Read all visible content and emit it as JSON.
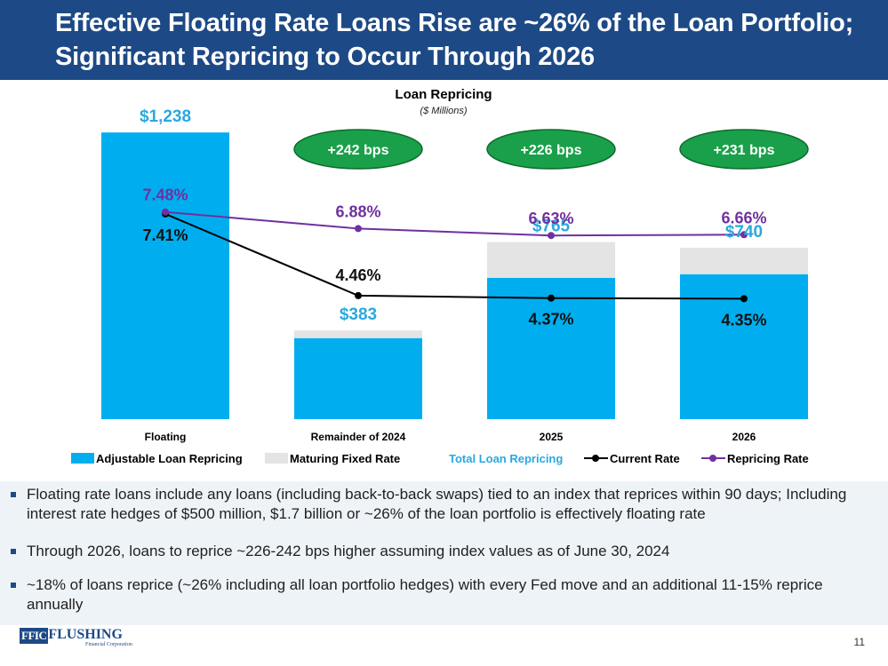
{
  "slide": {
    "title_line1": "Effective Floating Rate Loans Rise are ~26% of the Loan Portfolio;",
    "title_line2": "Significant Repricing to Occur Through 2026",
    "page_number": "11"
  },
  "logo": {
    "mark": "FFIC",
    "name": "FLUSHING",
    "sub": "Financial Corporation"
  },
  "bullets": [
    "Floating rate loans include any loans (including back-to-back swaps) tied to an index that reprices within 90 days; Including interest rate hedges of $500 million, $1.7 billion or ~26% of the loan portfolio is effectively floating rate",
    "Through 2026, loans to reprice ~226-242 bps higher assuming index values as of June 30, 2024",
    "~18% of loans reprice (~26% including all loan portfolio hedges) with every Fed move and an additional 11-15% reprice annually"
  ],
  "colors": {
    "header_bg": "#1d4a86",
    "adjustable": "#00aeef",
    "maturing": "#e4e4e4",
    "total_label": "#2aa8e0",
    "current_rate": "#000000",
    "repricing_rate": "#7030a0",
    "bps_fill": "#1aa04a",
    "bps_border": "#0b6b2c"
  },
  "chart_data": {
    "type": "bar",
    "title": "Loan Repricing",
    "subtitle": "($ Millions)",
    "categories": [
      "Floating",
      "Remainder of 2024",
      "2025",
      "2026"
    ],
    "y_units": "$ Millions",
    "ylim": [
      0,
      1300
    ],
    "series": [
      {
        "name": "Adjustable Loan Repricing",
        "kind": "stacked-bar",
        "values": [
          1238,
          350,
          610,
          626
        ]
      },
      {
        "name": "Maturing Fixed Rate",
        "kind": "stacked-bar",
        "values": [
          0,
          33,
          155,
          114
        ]
      },
      {
        "name": "Current Rate",
        "kind": "line",
        "values": [
          7.41,
          4.46,
          4.37,
          4.35
        ]
      },
      {
        "name": "Repricing Rate",
        "kind": "line",
        "values": [
          7.48,
          6.88,
          6.63,
          6.66
        ]
      }
    ],
    "rate_ylim": [
      0,
      10.87
    ],
    "total_labels": [
      "$1,238",
      "$383",
      "$765",
      "$740"
    ],
    "current_rate_labels": [
      "7.41%",
      "4.46%",
      "4.37%",
      "4.35%"
    ],
    "repricing_rate_labels": [
      "7.48%",
      "6.88%",
      "6.63%",
      "6.66%"
    ],
    "bps_labels": [
      "",
      "+242 bps",
      "+226 bps",
      "+231 bps"
    ],
    "legend": [
      "Adjustable Loan Repricing",
      "Maturing Fixed Rate",
      "Total Loan Repricing",
      "Current Rate",
      "Repricing Rate"
    ],
    "legend_position": "bottom",
    "grid": false
  }
}
